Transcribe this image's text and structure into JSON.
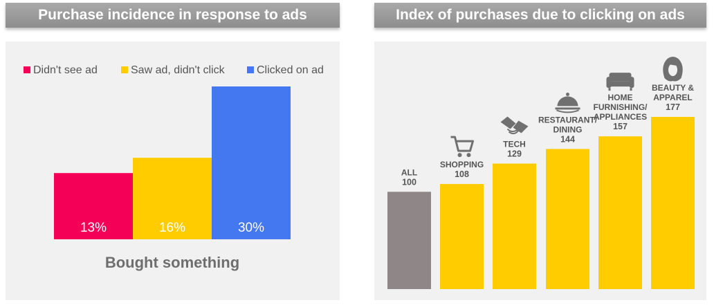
{
  "chart_data": [
    {
      "type": "bar",
      "title": "Purchase incidence in response to ads",
      "categories": [
        "Bought something"
      ],
      "xlabel": "Bought something",
      "series": [
        {
          "name": "Didn't see ad",
          "values": [
            13
          ],
          "label": "13%"
        },
        {
          "name": "Saw ad, didn't click",
          "values": [
            16
          ],
          "label": "16%"
        },
        {
          "name": "Clicked on ad",
          "values": [
            30
          ],
          "label": "30%"
        }
      ],
      "unit": "%",
      "legend": "top",
      "ylim": [
        0,
        30
      ],
      "colors": [
        "#f50057",
        "#ffcc00",
        "#4478f0"
      ]
    },
    {
      "type": "bar",
      "title": "Index of purchases due to clicking on ads",
      "categories": [
        {
          "lines": [
            "ALL"
          ],
          "icon": ""
        },
        {
          "lines": [
            "SHOPPING"
          ],
          "icon": "shopping-cart-icon"
        },
        {
          "lines": [
            "TECH"
          ],
          "icon": "handshake-icon"
        },
        {
          "lines": [
            "RESTAURANT/",
            "DINING"
          ],
          "icon": "cloche-icon"
        },
        {
          "lines": [
            "HOME",
            "FURNISHING/",
            "APPLIANCES"
          ],
          "icon": "sofa-icon"
        },
        {
          "lines": [
            "BEAUTY &",
            "APPAREL"
          ],
          "icon": "woman-face-icon"
        }
      ],
      "values": [
        100,
        108,
        129,
        144,
        157,
        177
      ],
      "ylim": [
        0,
        177
      ],
      "colors": [
        "#8f8787",
        "#ffcc00",
        "#ffcc00",
        "#ffcc00",
        "#ffcc00",
        "#ffcc00"
      ]
    }
  ]
}
